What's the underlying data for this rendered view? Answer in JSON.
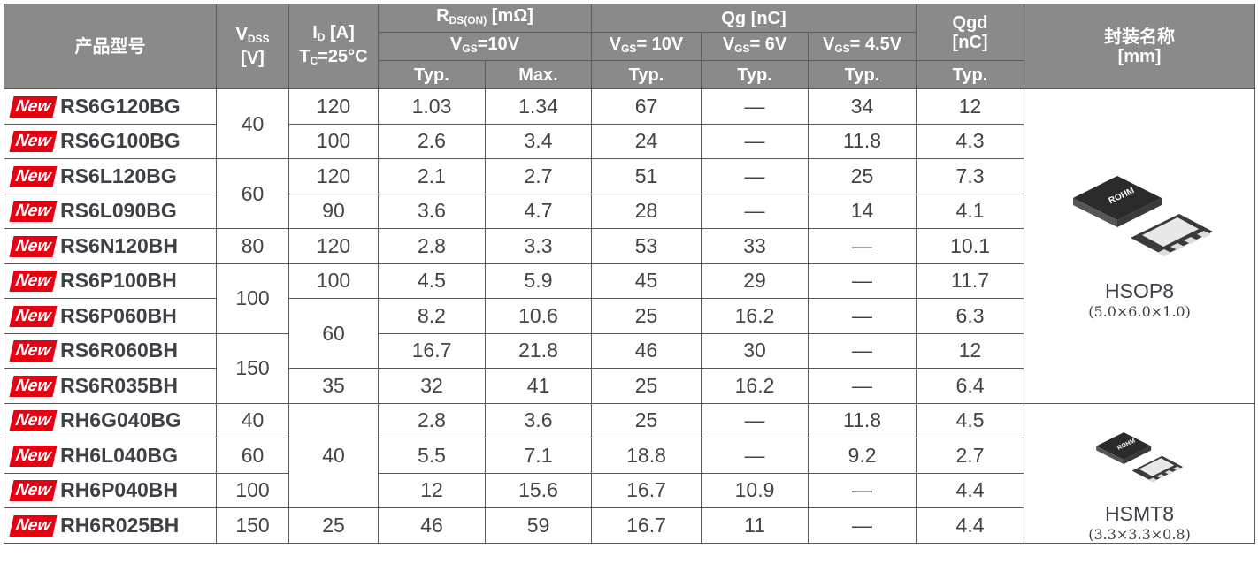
{
  "header": {
    "product": "产品型号",
    "vdss": {
      "symbol": "V",
      "sub": "DSS",
      "unit": "[V]"
    },
    "id": {
      "symbol": "I",
      "sub": "D",
      "unit": "[A]",
      "cond_symbol": "T",
      "cond_sub": "C",
      "cond_rest": "=25°C"
    },
    "rds": {
      "symbol": "R",
      "sub": "DS(ON)",
      "unit": "[mΩ]",
      "vgs": {
        "symbol": "V",
        "sub": "GS",
        "rest": "=10V"
      }
    },
    "qg": {
      "label": "Qg [nC]",
      "vgs": [
        {
          "symbol": "V",
          "sub": "GS",
          "rest": "= 10V"
        },
        {
          "symbol": "V",
          "sub": "GS",
          "rest": "= 6V"
        },
        {
          "symbol": "V",
          "sub": "GS",
          "rest": "= 4.5V"
        }
      ]
    },
    "qgd": {
      "label": "Qgd",
      "unit": "[nC]"
    },
    "package": {
      "label": "封装名称",
      "unit": "[mm]"
    },
    "sub_labels": [
      "Typ.",
      "Max.",
      "Typ.",
      "Typ.",
      "Typ.",
      "Typ."
    ]
  },
  "rows": [
    {
      "badge": "New",
      "name": "RS6G120BG",
      "rds_typ": 1.03,
      "rds_max": 1.34,
      "qg10": 67,
      "qg6": "—",
      "qg45": 34,
      "qgd": 12
    },
    {
      "badge": "New",
      "name": "RS6G100BG",
      "rds_typ": 2.6,
      "rds_max": 3.4,
      "qg10": 24,
      "qg6": "—",
      "qg45": 11.8,
      "qgd": 4.3
    },
    {
      "badge": "New",
      "name": "RS6L120BG",
      "rds_typ": 2.1,
      "rds_max": 2.7,
      "qg10": 51,
      "qg6": "—",
      "qg45": 25,
      "qgd": 7.3
    },
    {
      "badge": "New",
      "name": "RS6L090BG",
      "rds_typ": 3.6,
      "rds_max": 4.7,
      "qg10": 28,
      "qg6": "—",
      "qg45": 14,
      "qgd": 4.1
    },
    {
      "badge": "New",
      "name": "RS6N120BH",
      "rds_typ": 2.8,
      "rds_max": 3.3,
      "qg10": 53,
      "qg6": 33,
      "qg45": "—",
      "qgd": 10.1
    },
    {
      "badge": "New",
      "name": "RS6P100BH",
      "rds_typ": 4.5,
      "rds_max": 5.9,
      "qg10": 45,
      "qg6": 29,
      "qg45": "—",
      "qgd": 11.7
    },
    {
      "badge": "New",
      "name": "RS6P060BH",
      "rds_typ": 8.2,
      "rds_max": 10.6,
      "qg10": 25,
      "qg6": 16.2,
      "qg45": "—",
      "qgd": 6.3
    },
    {
      "badge": "New",
      "name": "RS6R060BH",
      "rds_typ": 16.7,
      "rds_max": 21.8,
      "qg10": 46,
      "qg6": 30,
      "qg45": "—",
      "qgd": 12
    },
    {
      "badge": "New",
      "name": "RS6R035BH",
      "rds_typ": 32,
      "rds_max": 41,
      "qg10": 25,
      "qg6": 16.2,
      "qg45": "—",
      "qgd": 6.4
    },
    {
      "badge": "New",
      "name": "RH6G040BG",
      "rds_typ": 2.8,
      "rds_max": 3.6,
      "qg10": 25,
      "qg6": "—",
      "qg45": 11.8,
      "qgd": 4.5
    },
    {
      "badge": "New",
      "name": "RH6L040BG",
      "rds_typ": 5.5,
      "rds_max": 7.1,
      "qg10": 18.8,
      "qg6": "—",
      "qg45": 9.2,
      "qgd": 2.7
    },
    {
      "badge": "New",
      "name": "RH6P040BH",
      "rds_typ": 12,
      "rds_max": 15.6,
      "qg10": 16.7,
      "qg6": 10.9,
      "qg45": "—",
      "qgd": 4.4
    },
    {
      "badge": "New",
      "name": "RH6R025BH",
      "rds_typ": 46,
      "rds_max": 59,
      "qg10": 16.7,
      "qg6": 11,
      "qg45": "—",
      "qgd": 4.4
    }
  ],
  "vdss": [
    40,
    60,
    80,
    100,
    150,
    40,
    60,
    100,
    150
  ],
  "id": [
    120,
    100,
    120,
    90,
    120,
    100,
    60,
    35,
    40,
    25
  ],
  "packages": [
    {
      "chip": "ROHM",
      "name": "HSOP8",
      "dims": "(5.0×6.0×1.0)"
    },
    {
      "chip": "ROHM",
      "name": "HSMT8",
      "dims": "(3.3×3.3×0.8)"
    }
  ]
}
